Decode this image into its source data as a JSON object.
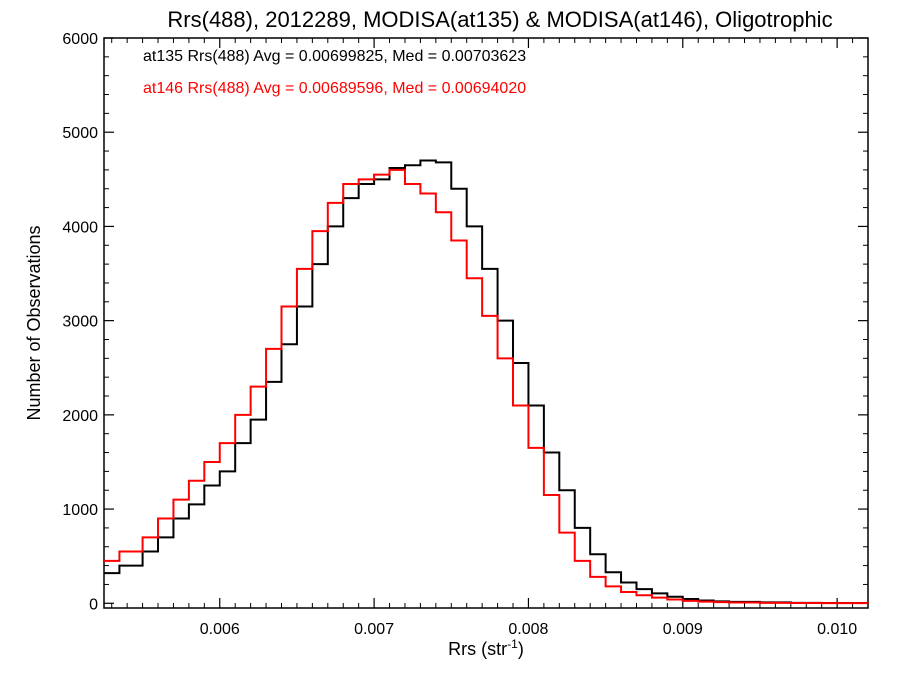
{
  "chart_data": {
    "type": "line",
    "title": "Rrs(488), 2012289, MODISA(at135) & MODISA(at146), Oligotrophic",
    "xlabel_main": "Rrs (str",
    "xlabel_sup": "-1",
    "xlabel_close": ")",
    "ylabel": "Number of Observations",
    "xlim": [
      0.00525,
      0.0102
    ],
    "ylim": [
      -50,
      6000
    ],
    "xticks": [
      0.006,
      0.007,
      0.008,
      0.009,
      0.01
    ],
    "xtick_labels": [
      "0.006",
      "0.007",
      "0.008",
      "0.009",
      "0.010"
    ],
    "yticks": [
      0,
      1000,
      2000,
      3000,
      4000,
      5000,
      6000
    ],
    "ytick_labels": [
      "0",
      "1000",
      "2000",
      "3000",
      "4000",
      "5000",
      "6000"
    ],
    "grid": false,
    "legend_position": "top-left",
    "series": [
      {
        "name": "at135 Rrs(488) Avg = 0.00699825, Med = 0.00703623",
        "color": "#000000",
        "step": true,
        "x": [
          0.00525,
          0.00535,
          0.0055,
          0.0056,
          0.0057,
          0.0058,
          0.0059,
          0.006,
          0.0061,
          0.0062,
          0.0063,
          0.0064,
          0.0065,
          0.0066,
          0.0067,
          0.0068,
          0.0069,
          0.007,
          0.0071,
          0.0072,
          0.0073,
          0.0074,
          0.0075,
          0.0076,
          0.0077,
          0.0078,
          0.0079,
          0.008,
          0.0081,
          0.0082,
          0.0083,
          0.0084,
          0.0085,
          0.0086,
          0.0087,
          0.0088,
          0.0089,
          0.009,
          0.0091,
          0.0092,
          0.0093,
          0.0095,
          0.0097,
          0.0099,
          0.0102
        ],
        "values": [
          320,
          400,
          550,
          700,
          900,
          1050,
          1250,
          1400,
          1700,
          1950,
          2350,
          2750,
          3150,
          3600,
          4000,
          4300,
          4450,
          4500,
          4620,
          4650,
          4700,
          4680,
          4400,
          4000,
          3550,
          3000,
          2550,
          2100,
          1600,
          1200,
          800,
          520,
          330,
          220,
          150,
          105,
          70,
          45,
          30,
          20,
          15,
          10,
          5,
          3,
          2
        ]
      },
      {
        "name": "at146 Rrs(488) Avg = 0.00689596, Med = 0.00694020",
        "color": "#ff0000",
        "step": true,
        "x": [
          0.00525,
          0.00535,
          0.0055,
          0.0056,
          0.0057,
          0.0058,
          0.0059,
          0.006,
          0.0061,
          0.0062,
          0.0063,
          0.0064,
          0.0065,
          0.0066,
          0.0067,
          0.0068,
          0.0069,
          0.007,
          0.0071,
          0.0072,
          0.0073,
          0.0074,
          0.0075,
          0.0076,
          0.0077,
          0.0078,
          0.0079,
          0.008,
          0.0081,
          0.0082,
          0.0083,
          0.0084,
          0.0085,
          0.0086,
          0.0087,
          0.0088,
          0.0089,
          0.009,
          0.0091,
          0.0092,
          0.0093,
          0.0095,
          0.0097,
          0.0099,
          0.0102
        ],
        "values": [
          450,
          550,
          700,
          900,
          1100,
          1300,
          1500,
          1700,
          2000,
          2300,
          2700,
          3150,
          3550,
          3950,
          4250,
          4450,
          4500,
          4550,
          4600,
          4450,
          4350,
          4150,
          3850,
          3450,
          3050,
          2600,
          2100,
          1650,
          1150,
          750,
          450,
          280,
          180,
          120,
          85,
          60,
          40,
          25,
          18,
          12,
          8,
          5,
          3,
          2,
          1
        ]
      }
    ]
  }
}
